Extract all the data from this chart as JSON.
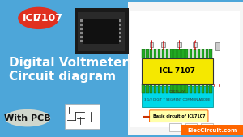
{
  "bg_left_color": "#4da6d9",
  "bg_right_color": "#f0f0f0",
  "title_line1": "Digital Voltmeter",
  "title_line2": "Circuit diagram",
  "subtitle": "With PCB",
  "brand": "ElecCircuit.com",
  "brand_bg": "#ff6600",
  "icl_label": "ICL",
  "icl_number": "7107",
  "icl_circle_color": "#e03020",
  "chip_label": "ICL 7107",
  "chip_bg": "#f5e800",
  "chip_border": "#333333",
  "pin_color": "#22aa22",
  "display_bg": "#00d8e8",
  "display_text1": "DISPLAY",
  "display_text2": "3 1/2 DIGIT 7 SEGMENT COMMON ANODE",
  "basic_circuit_label": "Basic circuit of ICL7107",
  "basic_circuit_bg": "#ffffaa",
  "basic_circuit_border": "#ff6600",
  "circuit_bg": "#ffffff",
  "wire_color": "#cc0000",
  "schematic_bg": "#f5f5f5"
}
